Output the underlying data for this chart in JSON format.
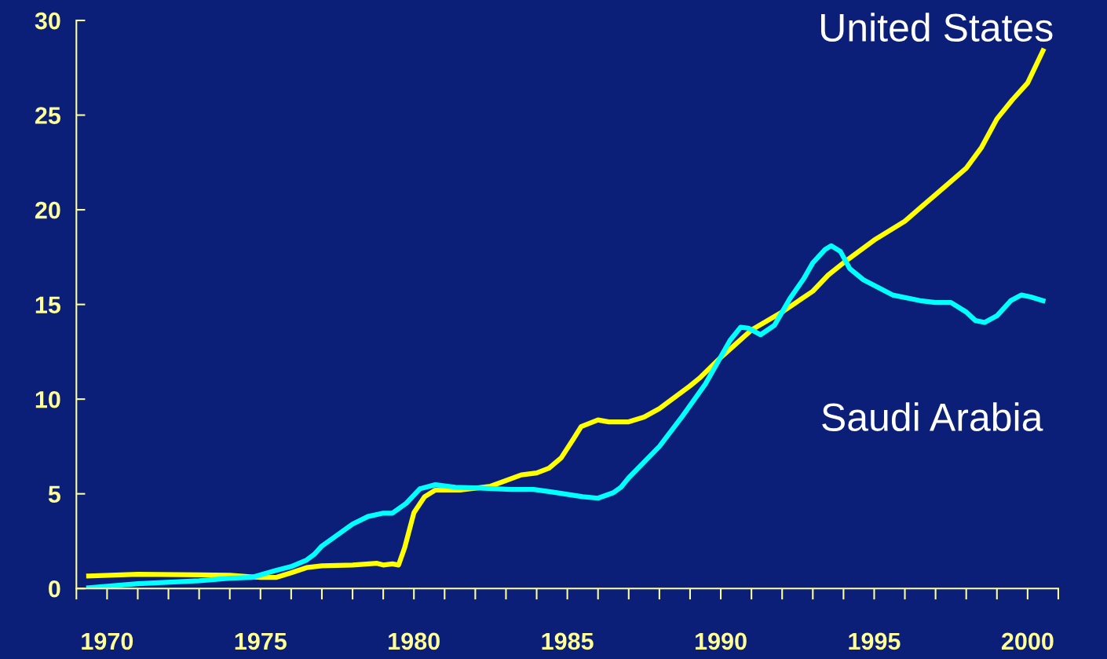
{
  "chart_data": {
    "type": "line",
    "xlim": [
      1969,
      2001
    ],
    "ylim": [
      0,
      30
    ],
    "xticks": [
      {
        "value": 1969,
        "label": null
      },
      1970,
      {
        "value": 1971,
        "label": null
      },
      {
        "value": 1972,
        "label": null
      },
      {
        "value": 1973,
        "label": null
      },
      {
        "value": 1974,
        "label": null
      },
      1975,
      {
        "value": 1976,
        "label": null
      },
      {
        "value": 1977,
        "label": null
      },
      {
        "value": 1978,
        "label": null
      },
      {
        "value": 1979,
        "label": null
      },
      1980,
      {
        "value": 1981,
        "label": null
      },
      {
        "value": 1982,
        "label": null
      },
      {
        "value": 1983,
        "label": null
      },
      {
        "value": 1984,
        "label": null
      },
      1985,
      {
        "value": 1986,
        "label": null
      },
      {
        "value": 1987,
        "label": null
      },
      {
        "value": 1988,
        "label": null
      },
      {
        "value": 1989,
        "label": null
      },
      1990,
      {
        "value": 1991,
        "label": null
      },
      {
        "value": 1992,
        "label": null
      },
      {
        "value": 1993,
        "label": null
      },
      {
        "value": 1994,
        "label": null
      },
      1995,
      {
        "value": 1996,
        "label": null
      },
      {
        "value": 1997,
        "label": null
      },
      {
        "value": 1998,
        "label": null
      },
      {
        "value": 1999,
        "label": null
      },
      2000,
      {
        "value": 2001,
        "label": null
      }
    ],
    "yticks": [
      0,
      5,
      10,
      15,
      20,
      25,
      30
    ],
    "grid": false,
    "legend": false,
    "marker": "none",
    "line_style": "solid",
    "series": [
      {
        "name": "United States",
        "color": "#ffff00",
        "x": [
          1969.4,
          1971,
          1974,
          1975,
          1975.5,
          1976,
          1976.5,
          1977,
          1978,
          1978.8,
          1979,
          1979.3,
          1979.5,
          1979.7,
          1980,
          1980.35,
          1980.7,
          1981.5,
          1982.5,
          1983.5,
          1984,
          1984.4,
          1984.8,
          1985.2,
          1985.45,
          1986,
          1986.35,
          1987,
          1987.5,
          1988,
          1989,
          1989.3,
          1990,
          1991,
          1992,
          1993,
          1993.5,
          1994,
          1995,
          1996,
          1996.5,
          1997,
          1998,
          1998.5,
          1999,
          1999.5,
          2000,
          2000.5
        ],
        "values": [
          0.66,
          0.75,
          0.7,
          0.58,
          0.58,
          0.83,
          1.1,
          1.2,
          1.24,
          1.33,
          1.24,
          1.3,
          1.24,
          2.16,
          4.0,
          4.85,
          5.2,
          5.2,
          5.4,
          6.0,
          6.1,
          6.35,
          6.9,
          7.9,
          8.55,
          8.9,
          8.8,
          8.8,
          9.05,
          9.5,
          10.7,
          11.1,
          12.2,
          13.65,
          14.6,
          15.7,
          16.55,
          17.2,
          18.4,
          19.4,
          20.1,
          20.8,
          22.2,
          23.3,
          24.8,
          25.8,
          26.7,
          28.4
        ]
      },
      {
        "name": "Saudi Arabia",
        "color": "#00ffff",
        "x": [
          1969.4,
          1971,
          1973,
          1974,
          1974.7,
          1975.5,
          1976,
          1976.5,
          1976.75,
          1977,
          1978,
          1978.5,
          1979,
          1979.3,
          1979.75,
          1980.2,
          1980.7,
          1981.35,
          1982.15,
          1983.15,
          1983.9,
          1984.5,
          1985.5,
          1986,
          1986.5,
          1986.75,
          1987,
          1988,
          1988.75,
          1989.5,
          1990.3,
          1990.65,
          1990.9,
          1991.3,
          1991.75,
          1992.25,
          1992.7,
          1993,
          1993.4,
          1993.6,
          1993.9,
          1994.2,
          1994.65,
          1995.6,
          1996.5,
          1997,
          1997.5,
          1998,
          1998.3,
          1998.6,
          1999,
          1999.45,
          1999.8,
          2000.1,
          2000.5
        ],
        "values": [
          0.04,
          0.25,
          0.41,
          0.54,
          0.58,
          0.95,
          1.16,
          1.5,
          1.8,
          2.24,
          3.4,
          3.8,
          3.98,
          3.98,
          4.5,
          5.27,
          5.48,
          5.35,
          5.3,
          5.23,
          5.23,
          5.1,
          4.85,
          4.77,
          5.06,
          5.35,
          5.85,
          7.5,
          9.1,
          10.8,
          13.1,
          13.8,
          13.75,
          13.4,
          13.9,
          15.3,
          16.35,
          17.2,
          17.9,
          18.1,
          17.8,
          16.9,
          16.3,
          15.5,
          15.2,
          15.1,
          15.1,
          14.6,
          14.15,
          14.05,
          14.4,
          15.2,
          15.5,
          15.4,
          15.2
        ]
      }
    ]
  }
}
